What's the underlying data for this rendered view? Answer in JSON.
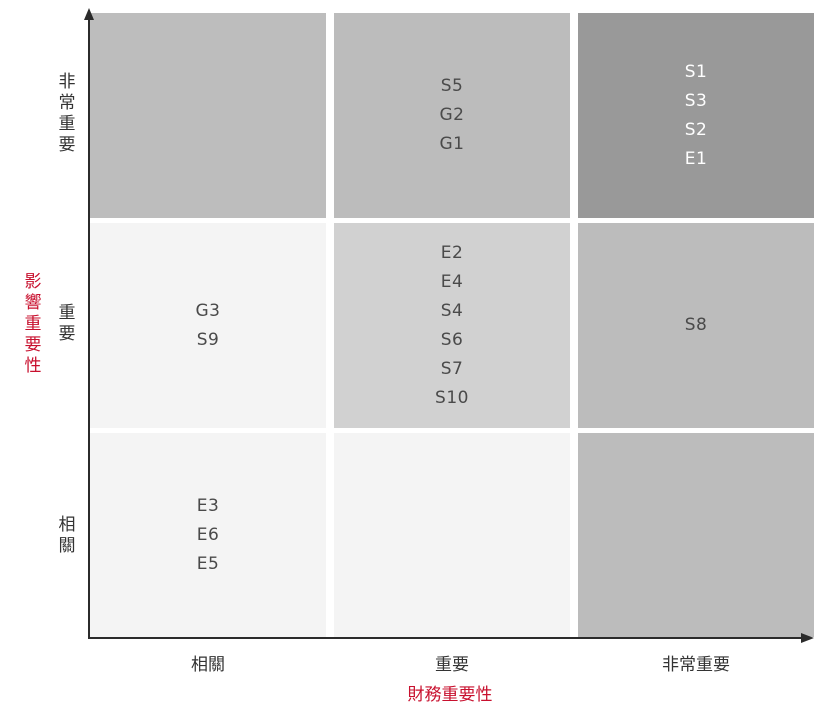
{
  "y_axis": {
    "title": "影響重要性",
    "labels": [
      "非常重要",
      "重要",
      "相關"
    ]
  },
  "x_axis": {
    "title": "財務重要性",
    "labels": [
      "相關",
      "重要",
      "非常重要"
    ]
  },
  "cells": {
    "r0c0": {
      "items": [],
      "color": "#bdbdbd"
    },
    "r0c1": {
      "items": [
        "S5",
        "G2",
        "G1"
      ],
      "color": "#bcbcbc"
    },
    "r0c2": {
      "items": [
        "S1",
        "S3",
        "S2",
        "E1"
      ],
      "color": "#999999"
    },
    "r1c0": {
      "items": [
        "G3",
        "S9"
      ],
      "color": "#f4f4f4"
    },
    "r1c1": {
      "items": [
        "E2",
        "E4",
        "S4",
        "S6",
        "S7",
        "S10"
      ],
      "color": "#d1d1d1"
    },
    "r1c2": {
      "items": [
        "S8"
      ],
      "color": "#bcbcbc"
    },
    "r2c0": {
      "items": [
        "E3",
        "E6",
        "E5"
      ],
      "color": "#f4f4f4"
    },
    "r2c1": {
      "items": [],
      "color": "#f4f4f4"
    },
    "r2c2": {
      "items": [],
      "color": "#bcbcbc"
    }
  },
  "colors": {
    "axis_title": "#c8102e",
    "axis_line": "#2b2b2b"
  }
}
